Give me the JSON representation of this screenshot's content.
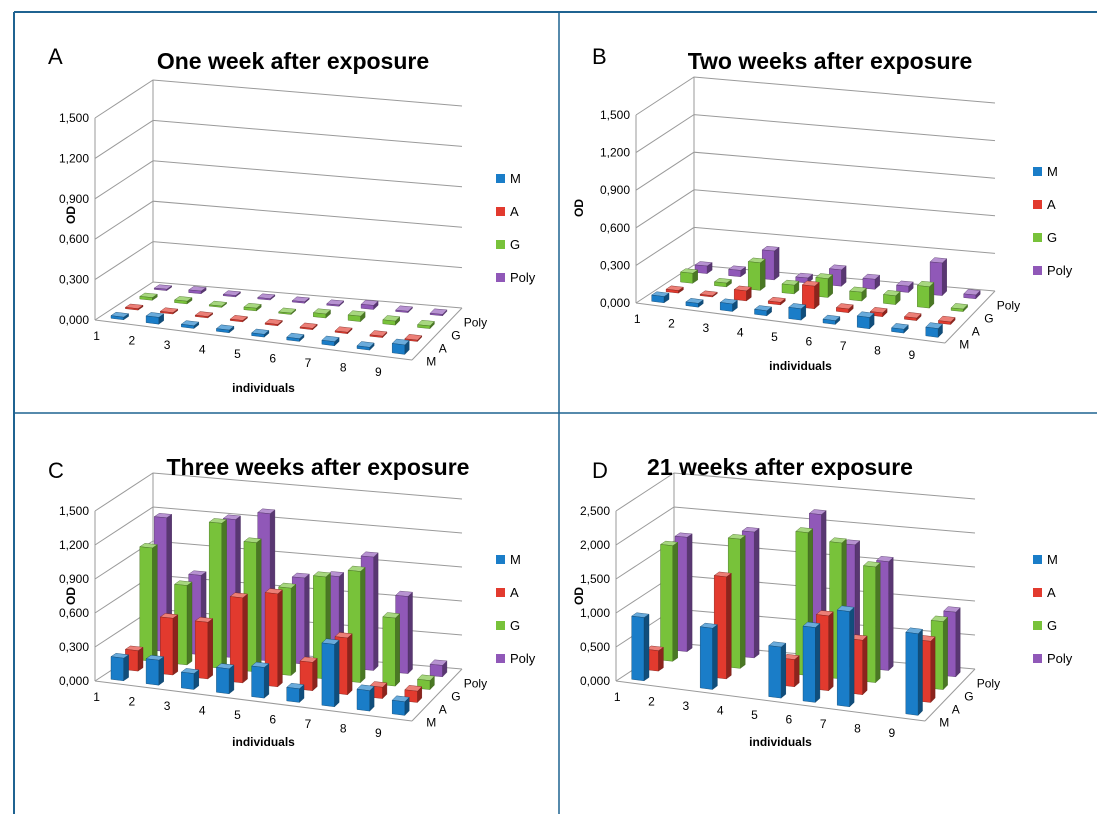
{
  "colors": {
    "border": "#1f6391",
    "grid": "#9a9a9a",
    "series": [
      "#1a7dc8",
      "#e23a2e",
      "#78c23a",
      "#9058b8"
    ]
  },
  "chart_data": [
    {
      "type": "bar",
      "panel": "A",
      "title": "One week after exposure",
      "xlabel": "individuals",
      "ylabel": "OD",
      "ylim": [
        0,
        1.5
      ],
      "yticks": [
        "0,000",
        "0,300",
        "0,600",
        "0,900",
        "1,200",
        "1,500"
      ],
      "categories": [
        "1",
        "2",
        "3",
        "4",
        "5",
        "6",
        "7",
        "8",
        "9"
      ],
      "depth_labels": [
        "M",
        "A",
        "G",
        "Poly"
      ],
      "legend_position": "right",
      "series": [
        {
          "name": "M",
          "values": [
            0.02,
            0.05,
            0.02,
            0.02,
            0.02,
            0.02,
            0.03,
            0.02,
            0.07
          ]
        },
        {
          "name": "A",
          "values": [
            0.01,
            0.01,
            0.01,
            0.01,
            0.01,
            0.01,
            0.01,
            0.01,
            0.01
          ]
        },
        {
          "name": "G",
          "values": [
            0.02,
            0.02,
            0.01,
            0.02,
            0.01,
            0.03,
            0.04,
            0.03,
            0.02
          ]
        },
        {
          "name": "Poly",
          "values": [
            0.01,
            0.02,
            0.01,
            0.01,
            0.01,
            0.01,
            0.03,
            0.01,
            0.01
          ]
        }
      ]
    },
    {
      "type": "bar",
      "panel": "B",
      "title": "Two weeks after exposure",
      "xlabel": "individuals",
      "ylabel": "OD",
      "ylim": [
        0,
        1.5
      ],
      "yticks": [
        "0,000",
        "0,300",
        "0,600",
        "0,900",
        "1,200",
        "1,500"
      ],
      "categories": [
        "1",
        "2",
        "3",
        "4",
        "5",
        "6",
        "7",
        "8",
        "9"
      ],
      "depth_labels": [
        "M",
        "A",
        "G",
        "Poly"
      ],
      "legend_position": "right",
      "series": [
        {
          "name": "M",
          "values": [
            0.05,
            0.03,
            0.06,
            0.04,
            0.09,
            0.03,
            0.09,
            0.03,
            0.07
          ]
        },
        {
          "name": "A",
          "values": [
            0.02,
            0.01,
            0.08,
            0.02,
            0.18,
            0.03,
            0.03,
            0.02,
            0.02
          ]
        },
        {
          "name": "G",
          "values": [
            0.08,
            0.03,
            0.22,
            0.07,
            0.15,
            0.07,
            0.07,
            0.17,
            0.02
          ]
        },
        {
          "name": "Poly",
          "values": [
            0.06,
            0.05,
            0.23,
            0.04,
            0.13,
            0.08,
            0.05,
            0.26,
            0.03
          ]
        }
      ]
    },
    {
      "type": "bar",
      "panel": "C",
      "title": "Three weeks after exposure",
      "xlabel": "individuals",
      "ylabel": "OD",
      "ylim": [
        0,
        1.5
      ],
      "yticks": [
        "0,000",
        "0,300",
        "0,600",
        "0,900",
        "1,200",
        "1,500"
      ],
      "categories": [
        "1",
        "2",
        "3",
        "4",
        "5",
        "6",
        "7",
        "8",
        "9"
      ],
      "depth_labels": [
        "M",
        "A",
        "G",
        "Poly"
      ],
      "legend_position": "right",
      "series": [
        {
          "name": "M",
          "values": [
            0.2,
            0.22,
            0.14,
            0.22,
            0.27,
            0.12,
            0.55,
            0.18,
            0.12
          ]
        },
        {
          "name": "A",
          "values": [
            0.18,
            0.5,
            0.5,
            0.75,
            0.82,
            0.25,
            0.5,
            0.1,
            0.1
          ]
        },
        {
          "name": "G",
          "values": [
            1.0,
            0.7,
            1.28,
            1.14,
            0.77,
            0.9,
            0.98,
            0.6,
            0.08
          ]
        },
        {
          "name": "Poly",
          "values": [
            1.18,
            0.7,
            1.22,
            1.3,
            0.76,
            0.8,
            1.0,
            0.68,
            0.1
          ]
        }
      ]
    },
    {
      "type": "bar",
      "panel": "D",
      "title": "21 weeks after exposure",
      "xlabel": "individuals",
      "ylabel": "OD",
      "ylim": [
        0,
        2.5
      ],
      "yticks": [
        "0,000",
        "0,500",
        "1,000",
        "1,500",
        "2,000",
        "2,500"
      ],
      "categories": [
        "1",
        "2",
        "3",
        "4",
        "5",
        "6",
        "7",
        "8",
        "9"
      ],
      "depth_labels": [
        "M",
        "A",
        "G",
        "Poly"
      ],
      "legend_position": "right",
      "series": [
        {
          "name": "M",
          "values": [
            0.93,
            0.0,
            0.9,
            0.0,
            0.75,
            1.1,
            1.4,
            0.0,
            1.2
          ]
        },
        {
          "name": "A",
          "values": [
            0.3,
            0.0,
            1.5,
            0.0,
            0.4,
            1.1,
            0.8,
            0.0,
            0.9
          ]
        },
        {
          "name": "G",
          "values": [
            1.7,
            0.0,
            1.9,
            0.0,
            2.1,
            2.0,
            1.7,
            0.0,
            1.0
          ]
        },
        {
          "name": "Poly",
          "values": [
            1.68,
            0.0,
            1.85,
            0.0,
            2.2,
            1.8,
            1.6,
            0.0,
            0.95
          ]
        }
      ]
    }
  ]
}
